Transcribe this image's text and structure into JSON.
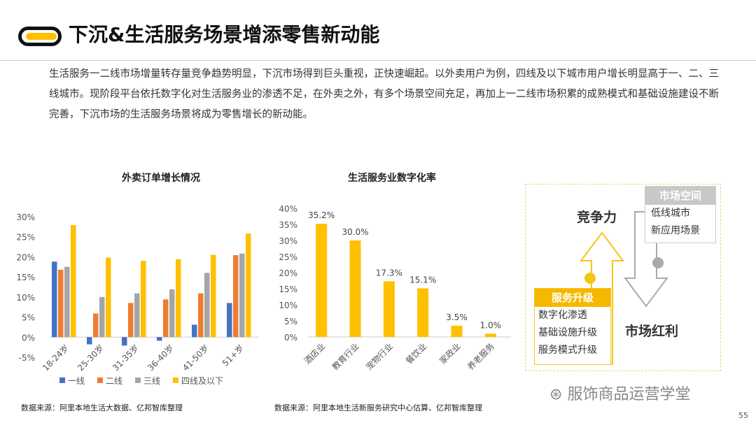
{
  "header": {
    "title": "下沉&生活服务场景增添零售新动能"
  },
  "intro": "生活服务一二线市场增量转存量竞争趋势明显，下沉市场得到巨头重视，正快速崛起。以外卖用户为例，四线及以下城市用户增长明显高于一、二、三线城市。现阶段平台依托数字化对生活服务业的渗透不足，在外卖之外，有多个场景空间充足，再加上一二线市场积累的成熟模式和基础设施建设不断完善，下沉市场的生活服务场景将成为零售增长的新动能。",
  "chart_data": [
    {
      "type": "bar",
      "title": "外卖订单增长情况",
      "categories": [
        "18-24岁",
        "25-30岁",
        "31-35岁",
        "36-40岁",
        "41-50岁",
        "51+岁"
      ],
      "series": [
        {
          "name": "一线",
          "color": "#4472c4",
          "values": [
            18.8,
            -1.8,
            -2.1,
            -0.9,
            3.1,
            8.5
          ]
        },
        {
          "name": "二线",
          "color": "#ed7d31",
          "values": [
            16.8,
            5.9,
            8.5,
            9.4,
            10.9,
            20.4
          ]
        },
        {
          "name": "三线",
          "color": "#a5a5a5",
          "values": [
            17.5,
            10.0,
            10.9,
            11.9,
            16.0,
            20.8
          ]
        },
        {
          "name": "四线及以下",
          "color": "#ffc000",
          "values": [
            27.9,
            19.8,
            19.0,
            19.4,
            20.5,
            25.8
          ]
        }
      ],
      "yticks": [
        "-5%",
        "0%",
        "5%",
        "10%",
        "15%",
        "20%",
        "25%",
        "30%"
      ],
      "ylim": [
        -5,
        30
      ],
      "legend": "bottom"
    },
    {
      "type": "bar",
      "title": "生活服务业数字化率",
      "categories": [
        "酒店业",
        "教育行业",
        "宠物行业",
        "餐饮业",
        "家政业",
        "养老服务"
      ],
      "values": [
        35.2,
        30.0,
        17.3,
        15.1,
        3.5,
        1.0
      ],
      "labels": [
        "35.2%",
        "30.0%",
        "17.3%",
        "15.1%",
        "3.5%",
        "1.0%"
      ],
      "color": "#ffc000",
      "yticks": [
        "0%",
        "5%",
        "10%",
        "15%",
        "20%",
        "25%",
        "30%",
        "35%",
        "40%"
      ],
      "ylim": [
        0,
        40
      ]
    }
  ],
  "sources": {
    "left": "数据来源：阿里本地生活大数据、亿邦智库整理",
    "right": "数据来源：阿里本地生活新服务研究中心估算、亿邦智库整理"
  },
  "diagram": {
    "competitiveness": "竞争力",
    "dividend": "市场红利",
    "market_space": {
      "title": "市场空间",
      "items": [
        "低线城市",
        "新应用场景"
      ]
    },
    "service_upgrade": {
      "title": "服务升级",
      "items": [
        "数字化渗透",
        "基础设施升级",
        "服务模式升级"
      ]
    }
  },
  "watermark": "服饰商品运营学堂",
  "page_number": "55"
}
